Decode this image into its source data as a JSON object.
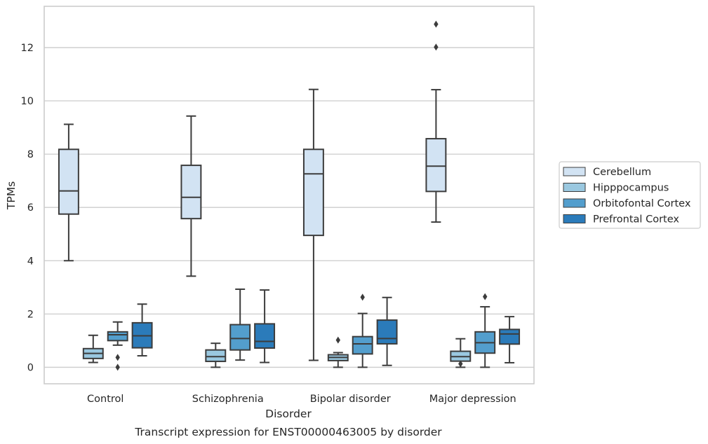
{
  "caption": "Transcript expression for ENST00000463005 by disorder",
  "chart_data": {
    "type": "box",
    "xlabel": "Disorder",
    "ylabel": "TPMs",
    "ylim": [
      -0.62,
      13.55
    ],
    "yticks": [
      0,
      2,
      4,
      6,
      8,
      10,
      12
    ],
    "grid": true,
    "legend_position": "right",
    "categories": [
      "Control",
      "Schizophrenia",
      "Bipolar disorder",
      "Major depression"
    ],
    "series": [
      {
        "name": "Cerebellum",
        "color": "#d2e3f3",
        "boxes": [
          {
            "whislo": 4.0,
            "q1": 5.75,
            "med": 6.62,
            "q3": 8.18,
            "whishi": 9.12,
            "fliers": []
          },
          {
            "whislo": 3.42,
            "q1": 5.58,
            "med": 6.38,
            "q3": 7.58,
            "whishi": 9.43,
            "fliers": []
          },
          {
            "whislo": 0.26,
            "q1": 4.95,
            "med": 7.26,
            "q3": 8.18,
            "whishi": 10.43,
            "fliers": []
          },
          {
            "whislo": 5.45,
            "q1": 6.6,
            "med": 7.55,
            "q3": 8.58,
            "whishi": 10.42,
            "fliers": [
              12.02,
              12.88
            ]
          }
        ]
      },
      {
        "name": "Hipppocampus",
        "color": "#9ac8e0",
        "boxes": [
          {
            "whislo": 0.18,
            "q1": 0.33,
            "med": 0.52,
            "q3": 0.7,
            "whishi": 1.2,
            "fliers": []
          },
          {
            "whislo": 0.0,
            "q1": 0.22,
            "med": 0.4,
            "q3": 0.65,
            "whishi": 0.9,
            "fliers": []
          },
          {
            "whislo": 0.0,
            "q1": 0.25,
            "med": 0.37,
            "q3": 0.47,
            "whishi": 0.55,
            "fliers": [
              1.02
            ]
          },
          {
            "whislo": 0.0,
            "q1": 0.23,
            "med": 0.4,
            "q3": 0.6,
            "whishi": 1.07,
            "fliers": [
              0.13
            ]
          }
        ]
      },
      {
        "name": "Orbitofontal Cortex",
        "color": "#539ecd",
        "boxes": [
          {
            "whislo": 0.83,
            "q1": 1.0,
            "med": 1.22,
            "q3": 1.33,
            "whishi": 1.7,
            "fliers": [
              0.37,
              0.0
            ]
          },
          {
            "whislo": 0.27,
            "q1": 0.65,
            "med": 1.08,
            "q3": 1.6,
            "whishi": 2.93,
            "fliers": []
          },
          {
            "whislo": 0.0,
            "q1": 0.5,
            "med": 0.88,
            "q3": 1.15,
            "whishi": 2.02,
            "fliers": [
              2.63
            ]
          },
          {
            "whislo": 0.0,
            "q1": 0.53,
            "med": 0.92,
            "q3": 1.33,
            "whishi": 2.27,
            "fliers": [
              2.65
            ]
          }
        ]
      },
      {
        "name": "Prefrontal Cortex",
        "color": "#2b7bba",
        "boxes": [
          {
            "whislo": 0.43,
            "q1": 0.73,
            "med": 1.18,
            "q3": 1.67,
            "whishi": 2.37,
            "fliers": []
          },
          {
            "whislo": 0.18,
            "q1": 0.72,
            "med": 0.97,
            "q3": 1.63,
            "whishi": 2.9,
            "fliers": []
          },
          {
            "whislo": 0.07,
            "q1": 0.88,
            "med": 1.08,
            "q3": 1.77,
            "whishi": 2.62,
            "fliers": []
          },
          {
            "whislo": 0.17,
            "q1": 0.87,
            "med": 1.25,
            "q3": 1.42,
            "whishi": 1.9,
            "fliers": []
          }
        ]
      }
    ]
  }
}
